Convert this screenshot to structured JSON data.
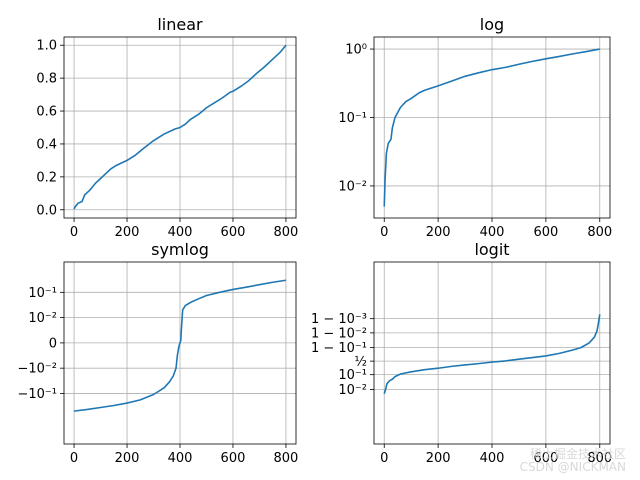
{
  "colors": {
    "series": "#1f77b4",
    "grid": "#b0b0b0",
    "axis": "#000000"
  },
  "watermark": {
    "line1": "稀土掘金技术社区",
    "line2": "CSDN @NICKMAN"
  },
  "chart_data": [
    {
      "type": "line",
      "title": "linear",
      "scale": "linear",
      "grid": true,
      "xlim": [
        -38,
        838
      ],
      "ylim": [
        -0.05,
        1.05
      ],
      "xticks": [
        0,
        200,
        400,
        600,
        800
      ],
      "xtick_labels": [
        "0",
        "200",
        "400",
        "600",
        "800"
      ],
      "yticks": [
        0,
        0.2,
        0.4,
        0.6,
        0.8,
        1.0
      ],
      "ytick_labels": [
        "0.0",
        "0.2",
        "0.4",
        "0.6",
        "0.8",
        "1.0"
      ],
      "series": [
        {
          "x": [
            0,
            5,
            15,
            30,
            40,
            60,
            80,
            100,
            120,
            140,
            160,
            180,
            200,
            230,
            260,
            300,
            340,
            380,
            400,
            420,
            440,
            470,
            500,
            530,
            560,
            590,
            600,
            630,
            660,
            690,
            720,
            750,
            780,
            800
          ],
          "y": [
            0.005,
            0.02,
            0.04,
            0.05,
            0.09,
            0.12,
            0.16,
            0.19,
            0.22,
            0.25,
            0.27,
            0.285,
            0.3,
            0.33,
            0.37,
            0.42,
            0.46,
            0.49,
            0.5,
            0.52,
            0.55,
            0.58,
            0.62,
            0.65,
            0.68,
            0.715,
            0.72,
            0.75,
            0.785,
            0.83,
            0.87,
            0.915,
            0.96,
            1.0
          ]
        }
      ]
    },
    {
      "type": "line",
      "title": "log",
      "scale": "log",
      "grid": true,
      "xlim": [
        -38,
        838
      ],
      "ylim": [
        0.0034,
        1.5
      ],
      "xticks": [
        0,
        200,
        400,
        600,
        800
      ],
      "xtick_labels": [
        "0",
        "200",
        "400",
        "600",
        "800"
      ],
      "yticks": [
        0.01,
        0.1,
        1
      ],
      "ytick_labels": [
        "10⁻²",
        "10⁻¹",
        "10⁰"
      ],
      "series": [
        {
          "x": [
            0,
            3,
            8,
            15,
            25,
            30,
            40,
            60,
            80,
            100,
            130,
            150,
            200,
            250,
            300,
            350,
            400,
            450,
            500,
            550,
            600,
            650,
            700,
            750,
            800
          ],
          "y": [
            0.005,
            0.012,
            0.03,
            0.042,
            0.048,
            0.07,
            0.1,
            0.14,
            0.17,
            0.19,
            0.23,
            0.25,
            0.29,
            0.34,
            0.4,
            0.45,
            0.5,
            0.54,
            0.6,
            0.66,
            0.72,
            0.78,
            0.85,
            0.92,
            1.0
          ]
        }
      ]
    },
    {
      "type": "line",
      "title": "symlog",
      "scale": "symlog",
      "grid": true,
      "xlim": [
        -38,
        838
      ],
      "ylim_display": [
        -4.0,
        3.2
      ],
      "xticks": [
        0,
        200,
        400,
        600,
        800
      ],
      "xtick_labels": [
        "0",
        "200",
        "400",
        "600",
        "800"
      ],
      "yticks": [
        -0.1,
        -0.01,
        0,
        0.01,
        0.1
      ],
      "ytick_labels": [
        "−10⁻¹",
        "−10⁻²",
        "0",
        "10⁻²",
        "10⁻¹"
      ],
      "series": [
        {
          "x": [
            0,
            50,
            100,
            150,
            200,
            250,
            300,
            340,
            360,
            375,
            385,
            390,
            394,
            397,
            399,
            401,
            403,
            405,
            410,
            420,
            440,
            460,
            500,
            550,
            600,
            650,
            700,
            750,
            800
          ],
          "y": [
            -0.5,
            -0.43,
            -0.36,
            -0.3,
            -0.24,
            -0.18,
            -0.11,
            -0.06,
            -0.035,
            -0.02,
            -0.01,
            -0.005,
            -0.0025,
            -0.001,
            -0.0004,
            0.0004,
            0.001,
            0.005,
            0.02,
            0.03,
            0.04,
            0.05,
            0.075,
            0.1,
            0.13,
            0.16,
            0.2,
            0.25,
            0.3
          ]
        }
      ]
    },
    {
      "type": "line",
      "title": "logit",
      "scale": "logit",
      "grid": true,
      "xlim": [
        -38,
        838
      ],
      "ylim_display": [
        -5.85,
        7.0
      ],
      "xticks": [
        0,
        200,
        400,
        600,
        800
      ],
      "xtick_labels": [
        "0",
        "200",
        "400",
        "600",
        "800"
      ],
      "yticks": [
        0.01,
        0.1,
        0.5,
        0.9,
        0.99,
        0.999
      ],
      "ytick_labels": [
        "10⁻²",
        "10⁻¹",
        "½",
        "1 − 10⁻¹",
        "1 − 10⁻²",
        "1 − 10⁻³"
      ],
      "series": [
        {
          "x": [
            0,
            5,
            10,
            20,
            30,
            40,
            60,
            100,
            150,
            200,
            250,
            300,
            350,
            400,
            450,
            500,
            550,
            600,
            650,
            700,
            730,
            760,
            780,
            790,
            795,
            800
          ],
          "y": [
            0.005,
            0.01,
            0.025,
            0.04,
            0.05,
            0.075,
            0.11,
            0.15,
            0.2,
            0.24,
            0.3,
            0.35,
            0.4,
            0.46,
            0.51,
            0.58,
            0.64,
            0.7,
            0.78,
            0.86,
            0.9,
            0.95,
            0.98,
            0.993,
            0.998,
            0.9995
          ]
        }
      ]
    }
  ]
}
